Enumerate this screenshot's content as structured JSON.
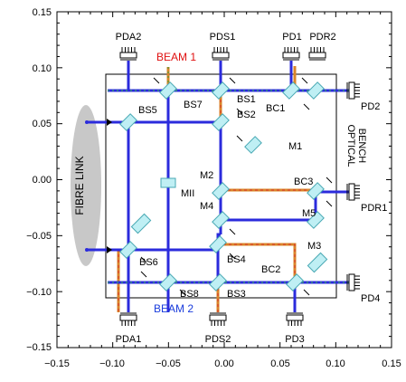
{
  "axes": {
    "x_ticks": [
      "−0.15",
      "−0.10",
      "−0.05",
      "0.00",
      "0.05",
      "0.10",
      "0.15"
    ],
    "y_ticks": [
      "0.15",
      "0.10",
      "0.05",
      "0.00",
      "−0.05",
      "−0.10",
      "−0.15"
    ],
    "xlim": [
      -0.15,
      0.15
    ],
    "ylim": [
      -0.15,
      0.15
    ]
  },
  "bench_label": [
    "OPTICAL",
    "BENCH"
  ],
  "fibre_label": "FIBRE LINK",
  "beams": {
    "beam1": "BEAM 1",
    "beam2": "BEAM 2"
  },
  "components": {
    "bs1": "BS1",
    "bs2": "BS2",
    "bs3": "BS3",
    "bs4": "BS4",
    "bs5": "BS5",
    "bs6": "BS6",
    "bs7": "BS7",
    "bs8": "BS8",
    "bc1": "BC1",
    "bc2": "BC2",
    "bc3": "BC3",
    "m1": "M1",
    "m2": "M2",
    "m3": "M3",
    "m4": "M4",
    "m5": "M5",
    "mii": "MII"
  },
  "detectors": {
    "pda2": "PDA2",
    "pds1": "PDS1",
    "pd1": "PD1",
    "pdr2": "PDR2",
    "pd2": "PD2",
    "pdr1": "PDR1",
    "pd4": "PD4",
    "pda1": "PDA1",
    "pds2": "PDS2",
    "pd3": "PD3"
  },
  "colors": {
    "blue_beam": "#2b2bdc",
    "orange_beam": "#d9852a",
    "red_beam": "#d9302a",
    "green_beam": "#2e9e3a",
    "optic_fill": "#bfeff4",
    "optic_edge": "#49a9b4",
    "fibre_fill": "#c8c8c8",
    "beam1_label": "#e01010",
    "beam2_label": "#1a3cdc"
  }
}
